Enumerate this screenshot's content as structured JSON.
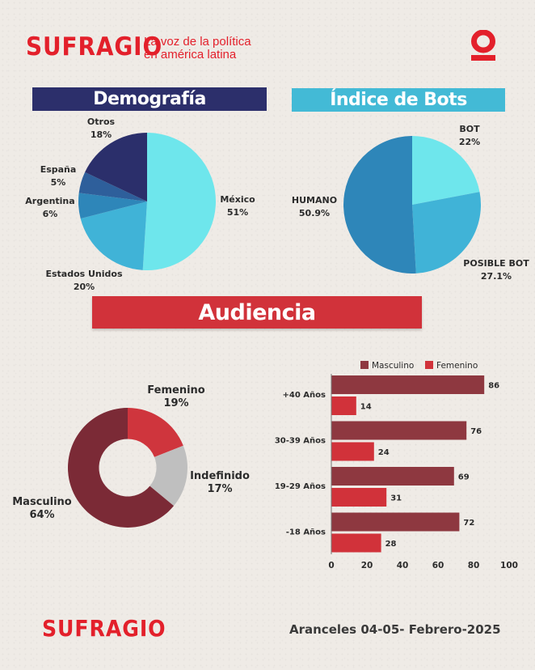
{
  "brand": {
    "logo_text": "SUFRAGIO",
    "tagline_line1": "La voz de la política",
    "tagline_line2": "en américa latina",
    "icon": "sufragio-o-icon"
  },
  "colors": {
    "brand_red": "#e3202b",
    "navy": "#2c2f6b",
    "cyan_banner": "#43bad6",
    "red_banner": "#d1323a"
  },
  "sections": {
    "demografia": "Demografía",
    "bots": "Índice de Bots",
    "audiencia": "Audiencia"
  },
  "footer": {
    "logo_text": "SUFRAGIO",
    "caption": "Aranceles 04-05- Febrero-2025"
  },
  "chart_data": [
    {
      "type": "pie",
      "title": "Demografía",
      "slices": [
        {
          "label": "México",
          "value": 51,
          "value_label": "51%",
          "color": "#6ee6ec"
        },
        {
          "label": "Estados Unidos",
          "value": 20,
          "value_label": "20%",
          "color": "#40b3d7"
        },
        {
          "label": "Argentina",
          "value": 6,
          "value_label": "6%",
          "color": "#2e86b9"
        },
        {
          "label": "España",
          "value": 5,
          "value_label": "5%",
          "color": "#2e5f9b"
        },
        {
          "label": "Otros",
          "value": 18,
          "value_label": "18%",
          "color": "#2b2f6b"
        }
      ]
    },
    {
      "type": "pie",
      "title": "Índice de Bots",
      "slices": [
        {
          "label": "BOT",
          "value": 22,
          "value_label": "22%",
          "color": "#6ee6ec"
        },
        {
          "label": "POSIBLE BOT",
          "value": 27.1,
          "value_label": "27.1%",
          "color": "#40b3d7"
        },
        {
          "label": "HUMANO",
          "value": 50.9,
          "value_label": "50.9%",
          "color": "#2e86b9"
        }
      ]
    },
    {
      "type": "pie",
      "title": "Audiencia",
      "donut": true,
      "slices": [
        {
          "label": "Femenino",
          "value": 19,
          "value_label": "19%",
          "color": "#cf353d"
        },
        {
          "label": "Indefinido",
          "value": 17,
          "value_label": "17%",
          "color": "#bfbfbf"
        },
        {
          "label": "Masculino",
          "value": 64,
          "value_label": "64%",
          "color": "#7b2a36"
        }
      ]
    },
    {
      "type": "bar",
      "orientation": "horizontal",
      "categories": [
        "+40 Años",
        "30-39 Años",
        "19-29 Años",
        "-18 Años"
      ],
      "series": [
        {
          "name": "Masculino",
          "values": [
            86,
            76,
            69,
            72
          ],
          "color": "#8e3840"
        },
        {
          "name": "Femenino",
          "values": [
            14,
            24,
            31,
            28
          ],
          "color": "#d1323a"
        }
      ],
      "xlim": [
        0,
        100
      ],
      "xticks": [
        "0",
        "20",
        "40",
        "60",
        "80",
        "100"
      ],
      "legend": "top",
      "grid": false
    }
  ]
}
